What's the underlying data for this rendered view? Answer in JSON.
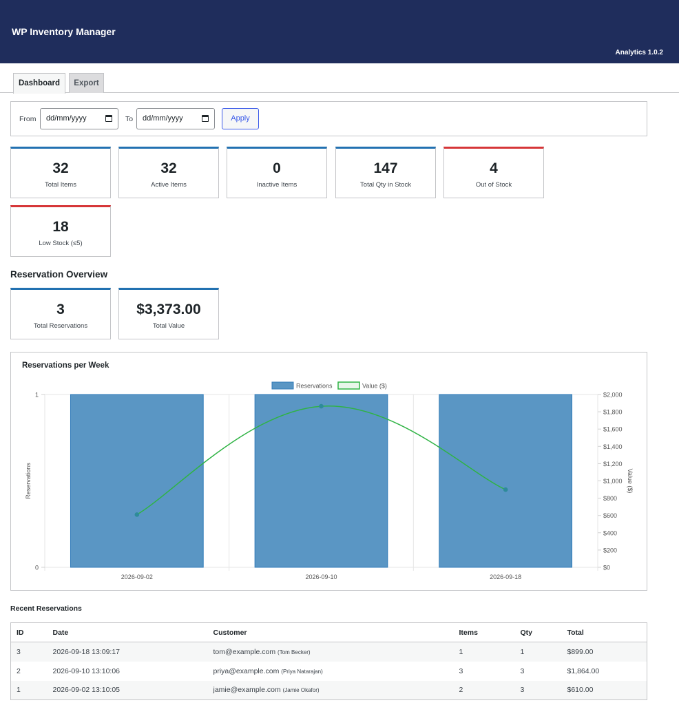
{
  "header": {
    "title": "WP Inventory Manager",
    "version": "Analytics 1.0.2"
  },
  "tabs": [
    {
      "label": "Dashboard",
      "active": true
    },
    {
      "label": "Export",
      "active": false
    }
  ],
  "filter": {
    "from_label": "From",
    "from_value": "dd/mm/yyyy",
    "to_label": "To",
    "to_value": "dd/mm/yyyy",
    "apply_label": "Apply"
  },
  "stats": [
    {
      "value": "32",
      "label": "Total Items",
      "accent": "#2271b1"
    },
    {
      "value": "32",
      "label": "Active Items",
      "accent": "#2271b1"
    },
    {
      "value": "0",
      "label": "Inactive Items",
      "accent": "#2271b1"
    },
    {
      "value": "147",
      "label": "Total Qty in Stock",
      "accent": "#2271b1"
    },
    {
      "value": "4",
      "label": "Out of Stock",
      "accent": "#d63638"
    },
    {
      "value": "18",
      "label": "Low Stock (≤5)",
      "accent": "#d63638"
    }
  ],
  "reservation_overview": {
    "title": "Reservation Overview",
    "stats": [
      {
        "value": "3",
        "label": "Total Reservations"
      },
      {
        "value": "$3,373.00",
        "label": "Total Value"
      }
    ]
  },
  "chart_data": {
    "type": "bar",
    "title": "Reservations per Week",
    "categories": [
      "2026-09-02",
      "2026-09-10",
      "2026-09-18"
    ],
    "series": [
      {
        "name": "Reservations",
        "type": "bar",
        "axis": "left",
        "values": [
          1,
          1,
          1
        ],
        "color": "#5a96c4"
      },
      {
        "name": "Value ($)",
        "type": "line",
        "axis": "right",
        "values": [
          610,
          1864,
          899
        ],
        "color": "#2fb344"
      }
    ],
    "ylabel": "Reservations",
    "ylabel_right": "Value ($)",
    "ylim": [
      0,
      1
    ],
    "ylim_right": [
      0,
      2000
    ],
    "yticks": [
      "0",
      "1"
    ],
    "yticks_right": [
      "$0",
      "$200",
      "$400",
      "$600",
      "$800",
      "$1,000",
      "$1,200",
      "$1,400",
      "$1,600",
      "$1,800",
      "$2,000"
    ],
    "legend": "top-center",
    "grid": true
  },
  "recent": {
    "title": "Recent Reservations",
    "columns": [
      "ID",
      "Date",
      "Customer",
      "Items",
      "Qty",
      "Total"
    ],
    "rows": [
      {
        "id": "3",
        "date": "2026-09-18 13:09:17",
        "email": "tom@example.com",
        "name": "(Tom Becker)",
        "items": "1",
        "qty": "1",
        "total": "$899.00"
      },
      {
        "id": "2",
        "date": "2026-09-10 13:10:06",
        "email": "priya@example.com",
        "name": "(Priya Natarajan)",
        "items": "3",
        "qty": "3",
        "total": "$1,864.00"
      },
      {
        "id": "1",
        "date": "2026-09-02 13:10:05",
        "email": "jamie@example.com",
        "name": "(Jamie Okafor)",
        "items": "2",
        "qty": "3",
        "total": "$610.00"
      }
    ]
  }
}
